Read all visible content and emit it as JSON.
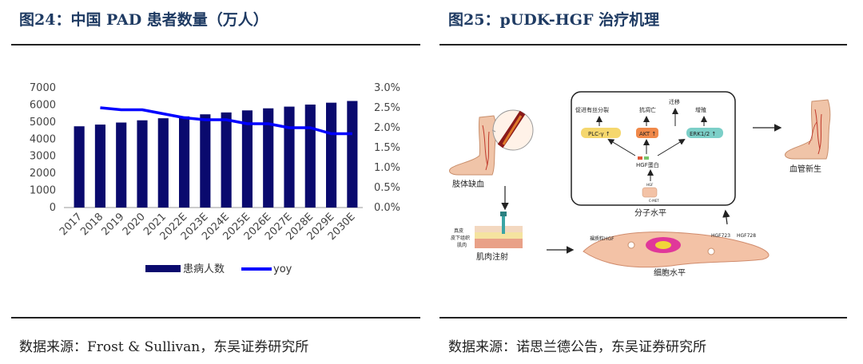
{
  "left_panel": {
    "title": "图24：中国 PAD 患者数量（万人）",
    "source": "数据来源：Frost & Sullivan，东吴证券研究所"
  },
  "right_panel": {
    "title": "图25：pUDK-HGF 治疗机理",
    "source": "数据来源：诺思兰德公告，东吴证券研究所"
  },
  "chart_data": {
    "type": "bar",
    "categories": [
      "2017",
      "2018",
      "2019",
      "2020",
      "2021",
      "2022E",
      "2023E",
      "2024E",
      "2025E",
      "2026E",
      "2027E",
      "2028E",
      "2029E",
      "2030E"
    ],
    "series": [
      {
        "name": "患病人数",
        "axis": "left",
        "type": "bar",
        "color": "#0a0a6e",
        "values": [
          4750,
          4850,
          4970,
          5100,
          5220,
          5330,
          5450,
          5560,
          5680,
          5800,
          5900,
          6020,
          6130,
          6230
        ]
      },
      {
        "name": "yoy",
        "axis": "right",
        "type": "line",
        "color": "#0000ff",
        "values": [
          null,
          2.5,
          2.45,
          2.45,
          2.35,
          2.25,
          2.2,
          2.2,
          2.1,
          2.1,
          2.0,
          2.0,
          1.85,
          1.85
        ]
      }
    ],
    "ylim_left": [
      0,
      7000
    ],
    "yticks_left": [
      "0",
      "1000",
      "2000",
      "3000",
      "4000",
      "5000",
      "6000",
      "7000"
    ],
    "ylim_right": [
      0,
      3.0
    ],
    "yticks_right": [
      "0.0%",
      "0.5%",
      "1.0%",
      "1.5%",
      "2.0%",
      "2.5%",
      "3.0%"
    ],
    "legend_position": "bottom",
    "grid": false
  },
  "diagram": {
    "ischemia_label": "肢体缺血",
    "injection_label": "肌肉注射",
    "tissue_layers": [
      "真皮",
      "皮下组织",
      "肌肉"
    ],
    "molecular_level_label": "分子水平",
    "cell_level_label": "细胞水平",
    "outcome_label": "血管新生",
    "effects": [
      "促进有丝分裂",
      "抗凋亡",
      "迁移",
      "增殖"
    ],
    "pathways": [
      "PLC-γ ↑",
      "AKT ↑",
      "ERK1/2 ↑"
    ],
    "hgf_protein_label": "HGF蛋白",
    "hgf_small": "HGF",
    "cmet_label": "C-MET",
    "plasmid_label": "裸质粒HGF",
    "hgf723": "HGF723",
    "hgf728": "HGF728"
  }
}
